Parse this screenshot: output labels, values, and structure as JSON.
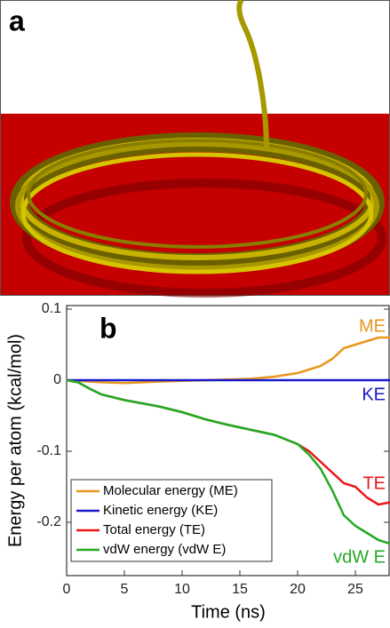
{
  "panel_a": {
    "label": "a"
  },
  "chart_data": {
    "type": "line",
    "panel_label": "b",
    "x_label": "Time (ns)",
    "y_label": "Energy per atom (kcal/mol)",
    "x": [
      0,
      1,
      2,
      3,
      5,
      8,
      10,
      12,
      14,
      16,
      18,
      20,
      21,
      22,
      23,
      24,
      25,
      26,
      27,
      28
    ],
    "xlim": [
      0,
      28
    ],
    "xticks": [
      0,
      5,
      10,
      15,
      20,
      25
    ],
    "ylim": [
      -0.275,
      0.105
    ],
    "yticks": [
      0.1,
      0,
      -0.1,
      -0.2
    ],
    "legend": "lower left",
    "series": [
      {
        "name": "Molecular energy (ME)",
        "short_name": "ME",
        "color": "#e8961e",
        "values": [
          0,
          -0.001,
          -0.002,
          -0.003,
          -0.004,
          -0.002,
          -0.001,
          0,
          0.001,
          0.002,
          0.005,
          0.01,
          0.015,
          0.02,
          0.03,
          0.045,
          0.05,
          0.055,
          0.06,
          0.06
        ]
      },
      {
        "name": "Kinetic energy (KE)",
        "short_name": "KE",
        "color": "#1a1acc",
        "values": [
          0,
          0,
          0,
          0,
          0,
          0,
          0,
          0,
          0,
          0,
          0,
          0,
          0,
          0,
          0,
          0,
          0,
          0,
          0,
          0
        ]
      },
      {
        "name": "Total energy (TE)",
        "short_name": "TE",
        "color": "#e81818",
        "values": [
          0,
          -0.003,
          -0.012,
          -0.02,
          -0.028,
          -0.037,
          -0.045,
          -0.055,
          -0.063,
          -0.07,
          -0.077,
          -0.09,
          -0.1,
          -0.115,
          -0.13,
          -0.145,
          -0.15,
          -0.165,
          -0.175,
          -0.172
        ]
      },
      {
        "name": "vdW energy (vdW E)",
        "short_name": "vdW E",
        "color": "#22aa22",
        "values": [
          0,
          -0.003,
          -0.012,
          -0.02,
          -0.028,
          -0.037,
          -0.045,
          -0.055,
          -0.063,
          -0.07,
          -0.077,
          -0.09,
          -0.105,
          -0.125,
          -0.155,
          -0.19,
          -0.205,
          -0.215,
          -0.225,
          -0.23
        ]
      }
    ]
  }
}
